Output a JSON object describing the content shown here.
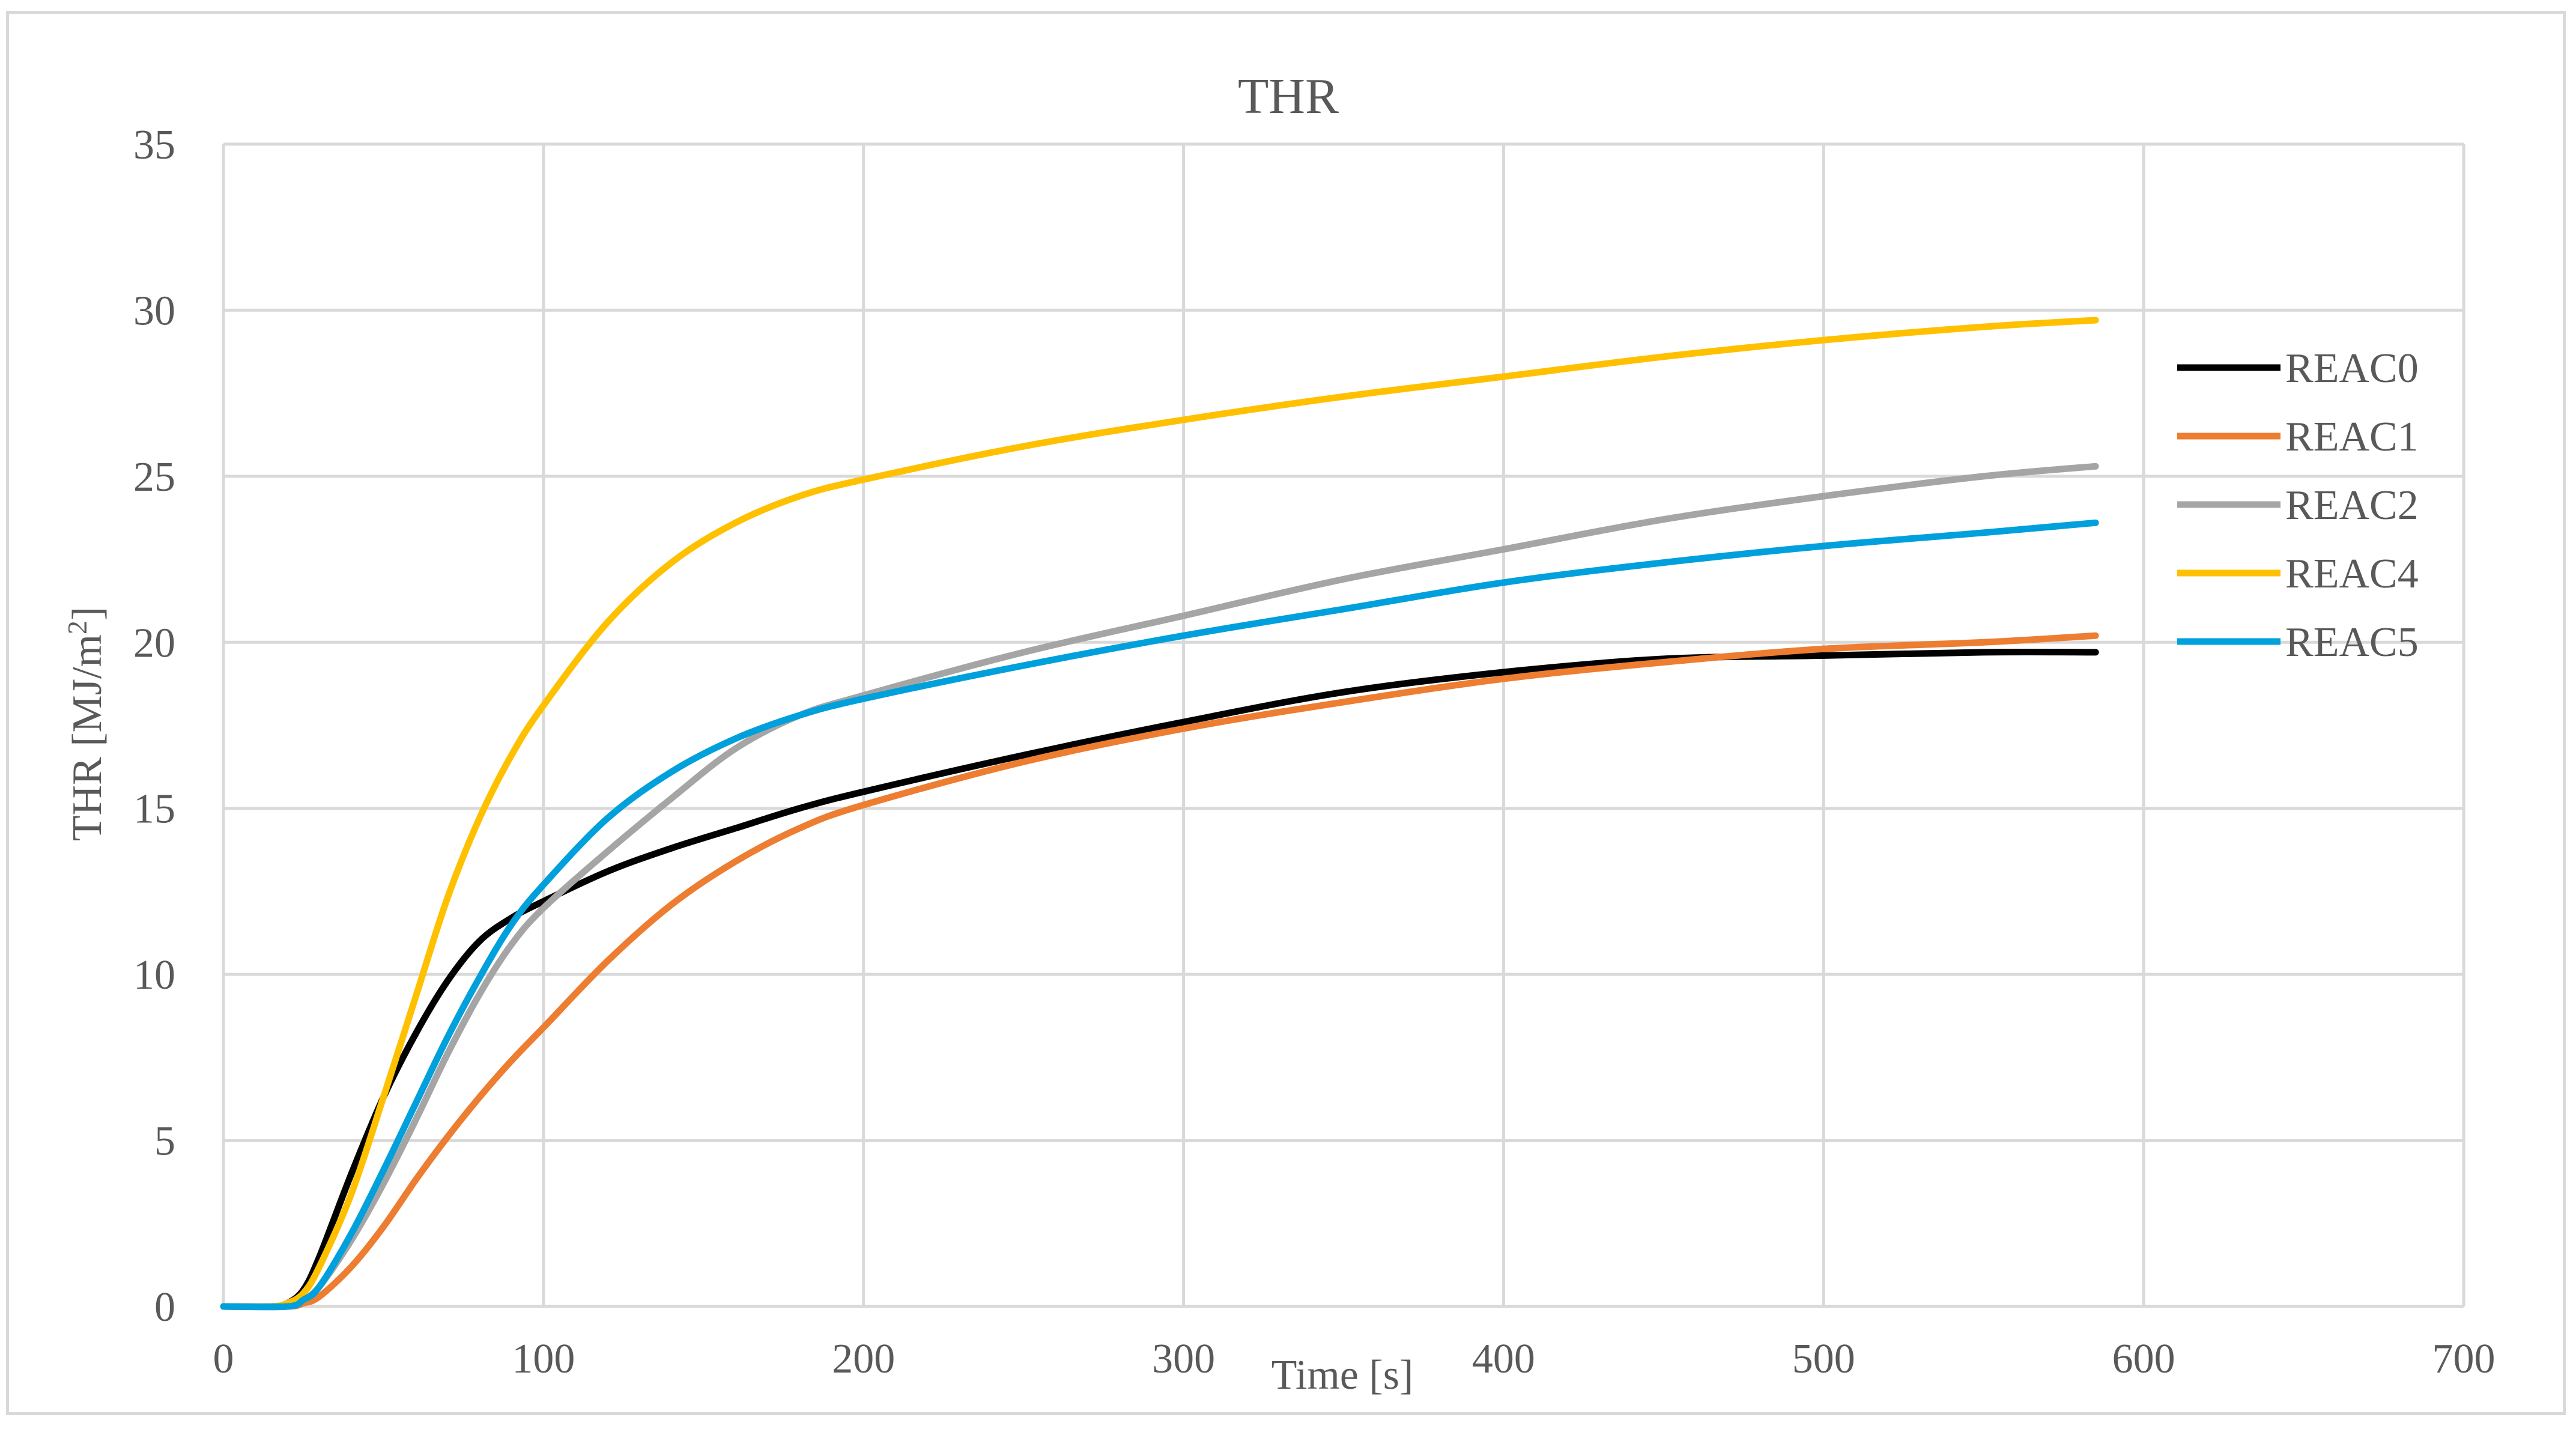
{
  "chart_data": {
    "type": "line",
    "title": "THR",
    "xlabel": "Time [s]",
    "ylabel_main": "THR [MJ/m",
    "ylabel_sup": "2",
    "ylabel_end": "]",
    "xlim": [
      0,
      700
    ],
    "ylim": [
      0,
      35
    ],
    "x_ticks": [
      0,
      100,
      200,
      300,
      400,
      500,
      600,
      700
    ],
    "y_ticks": [
      0,
      5,
      10,
      15,
      20,
      25,
      30,
      35
    ],
    "x_tick_labels": [
      "0",
      "100",
      "200",
      "300",
      "400",
      "500",
      "600",
      "700"
    ],
    "y_tick_labels": [
      "0",
      "5",
      "10",
      "15",
      "20",
      "25",
      "30",
      "35"
    ],
    "grid": true,
    "legend_position": "right",
    "series": [
      {
        "name": "REAC0",
        "color": "#000000",
        "x": [
          0,
          15,
          20,
          25,
          30,
          40,
          50,
          60,
          70,
          80,
          90,
          100,
          120,
          140,
          160,
          180,
          200,
          250,
          300,
          350,
          400,
          450,
          500,
          550,
          585
        ],
        "y": [
          0,
          0,
          0.1,
          0.5,
          1.5,
          4.0,
          6.3,
          8.2,
          9.8,
          11.0,
          11.7,
          12.2,
          13.1,
          13.8,
          14.4,
          15.0,
          15.5,
          16.6,
          17.6,
          18.5,
          19.1,
          19.5,
          19.6,
          19.7,
          19.7
        ]
      },
      {
        "name": "REAC1",
        "color": "#ED7D31",
        "x": [
          0,
          20,
          25,
          30,
          40,
          50,
          60,
          70,
          80,
          90,
          100,
          120,
          140,
          160,
          180,
          200,
          250,
          300,
          350,
          400,
          450,
          500,
          550,
          585
        ],
        "y": [
          0,
          0,
          0.1,
          0.3,
          1.2,
          2.4,
          3.8,
          5.1,
          6.3,
          7.4,
          8.4,
          10.4,
          12.1,
          13.4,
          14.4,
          15.1,
          16.4,
          17.4,
          18.2,
          18.9,
          19.4,
          19.8,
          20.0,
          20.2
        ]
      },
      {
        "name": "REAC2",
        "color": "#A5A5A5",
        "x": [
          0,
          20,
          25,
          30,
          40,
          50,
          60,
          70,
          80,
          90,
          100,
          120,
          140,
          160,
          180,
          200,
          250,
          300,
          350,
          400,
          450,
          500,
          550,
          585
        ],
        "y": [
          0,
          0,
          0.2,
          0.6,
          2.0,
          3.7,
          5.6,
          7.6,
          9.4,
          10.9,
          12.0,
          13.7,
          15.3,
          16.8,
          17.8,
          18.4,
          19.7,
          20.8,
          21.9,
          22.8,
          23.7,
          24.4,
          25.0,
          25.3
        ]
      },
      {
        "name": "REAC4",
        "color": "#FFC000",
        "x": [
          0,
          15,
          20,
          25,
          30,
          40,
          50,
          60,
          70,
          80,
          90,
          100,
          120,
          140,
          160,
          180,
          200,
          250,
          300,
          350,
          400,
          450,
          500,
          550,
          585
        ],
        "y": [
          0,
          0,
          0.1,
          0.4,
          1.2,
          3.4,
          6.3,
          9.3,
          12.3,
          14.7,
          16.6,
          18.1,
          20.6,
          22.4,
          23.6,
          24.4,
          24.9,
          25.9,
          26.7,
          27.4,
          28.0,
          28.6,
          29.1,
          29.5,
          29.7
        ]
      },
      {
        "name": "REAC5",
        "color": "#00A0DC",
        "x": [
          0,
          20,
          25,
          30,
          40,
          50,
          60,
          70,
          80,
          90,
          100,
          120,
          140,
          160,
          180,
          200,
          250,
          300,
          350,
          400,
          450,
          500,
          550,
          585
        ],
        "y": [
          0,
          0,
          0.2,
          0.6,
          2.2,
          4.1,
          6.1,
          8.1,
          9.9,
          11.5,
          12.7,
          14.7,
          16.1,
          17.1,
          17.8,
          18.3,
          19.3,
          20.2,
          21.0,
          21.8,
          22.4,
          22.9,
          23.3,
          23.6
        ]
      }
    ]
  }
}
